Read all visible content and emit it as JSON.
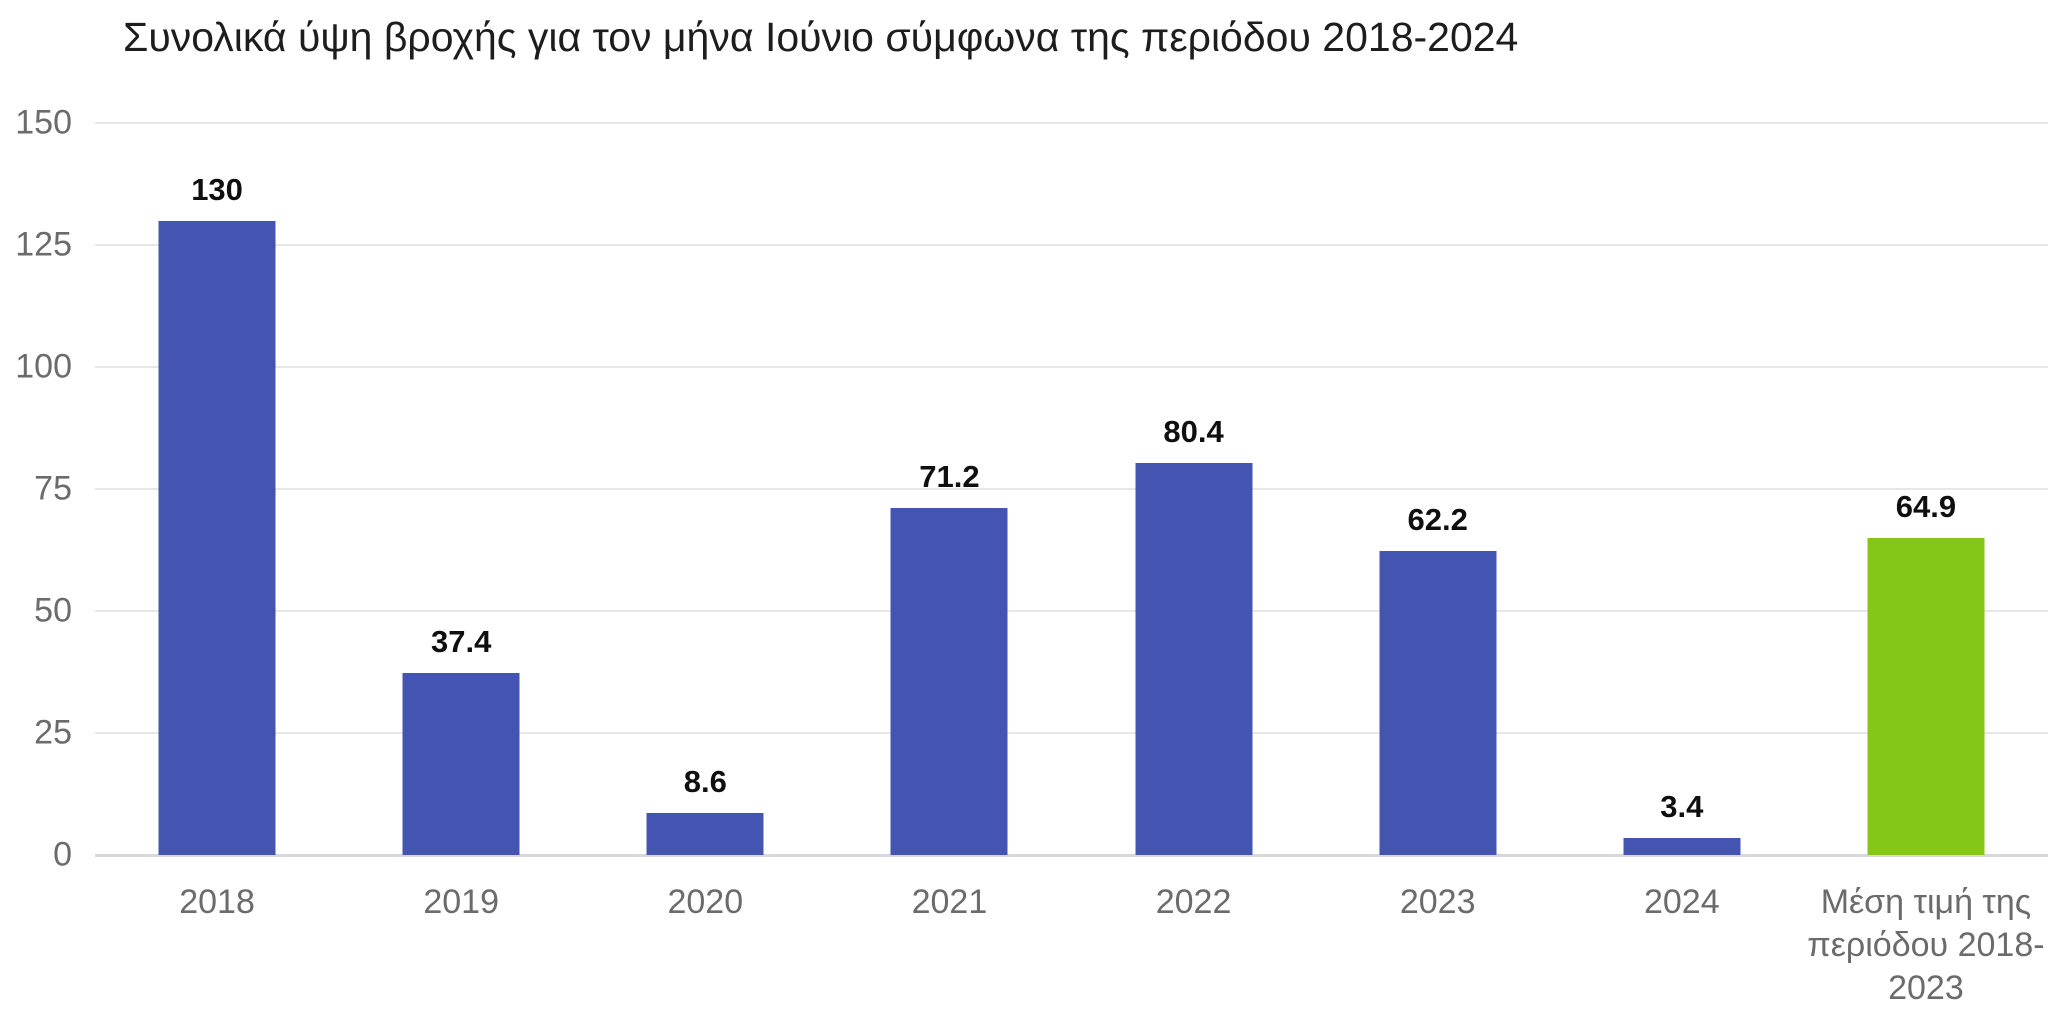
{
  "chart_data": {
    "type": "bar",
    "title": "Συνολικά ύψη βροχής για τον μήνα Ιούνιο σύμφωνα της περιόδου 2018-2024",
    "categories": [
      "2018",
      "2019",
      "2020",
      "2021",
      "2022",
      "2023",
      "2024",
      "Μέση τιμή της περιόδου 2018-2023"
    ],
    "values": [
      130,
      37.4,
      8.6,
      71.2,
      80.4,
      62.2,
      3.4,
      64.9
    ],
    "value_labels": [
      "130",
      "37.4",
      "8.6",
      "71.2",
      "80.4",
      "62.2",
      "3.4",
      "64.9"
    ],
    "ylim": [
      0,
      150
    ],
    "yticks": [
      150,
      125,
      100,
      75,
      50,
      25,
      0
    ],
    "grid": true,
    "legend": "none",
    "bar_color_default": "#4355B0",
    "bar_color_highlight": "#84C719",
    "highlight_index": 7,
    "title_color": "#1d1d1d",
    "axis_label_color": "#6b6b6b",
    "value_label_color": "#0f0f0f",
    "gridline_color": "#e7e7e7",
    "baseline_color": "#d6d8dc"
  }
}
